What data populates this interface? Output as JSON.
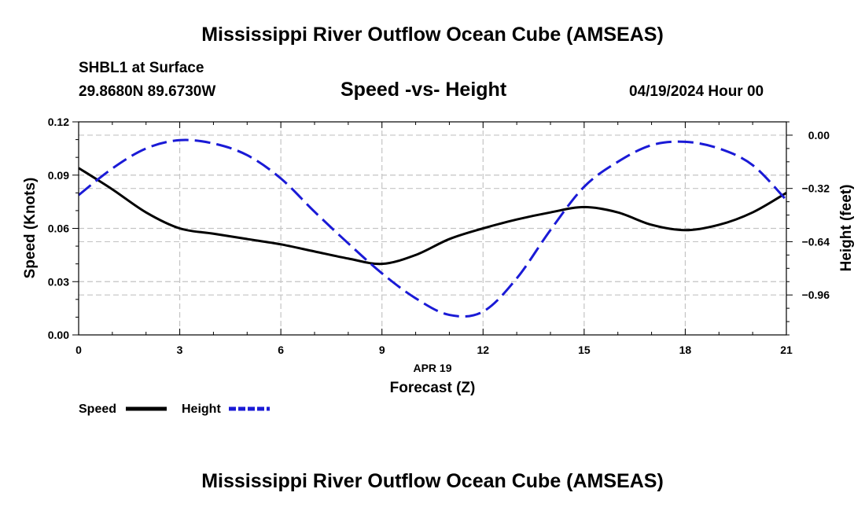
{
  "header": {
    "title": "Mississippi River Outflow Ocean Cube (AMSEAS)",
    "station": "SHBL1 at Surface",
    "coordinates": "29.8680N  89.6730W",
    "subtitle": "Speed -vs- Height",
    "datetime": "04/19/2024 Hour 00"
  },
  "footer": {
    "title": "Mississippi River Outflow Ocean Cube (AMSEAS)"
  },
  "chart_data": {
    "type": "line",
    "title": "Speed -vs- Height",
    "xlabel": "Forecast (Z)",
    "xlabel_date": "APR 19",
    "ylabel": "Speed (Knots)",
    "y2label": "Height (feet)",
    "xlim": [
      0,
      21
    ],
    "ylim": [
      0,
      0.12
    ],
    "y2lim": [
      -1.2,
      0.08
    ],
    "x_ticks": [
      0,
      3,
      6,
      9,
      12,
      15,
      18,
      21
    ],
    "x_tick_labels": [
      "0",
      "3",
      "6",
      "9",
      "12",
      "15",
      "18",
      "21"
    ],
    "y_ticks": [
      0,
      0.03,
      0.06,
      0.09,
      0.12
    ],
    "y_tick_labels": [
      "0.00",
      "0.03",
      "0.06",
      "0.09",
      "0.12"
    ],
    "y2_ticks": [
      0,
      -0.32,
      -0.64,
      -0.96
    ],
    "y2_tick_labels": [
      "0.00",
      "−0.32",
      "−0.64",
      "−0.96"
    ],
    "grid": true,
    "x": [
      0,
      1,
      2,
      3,
      4,
      5,
      6,
      7,
      8,
      9,
      10,
      11,
      12,
      13,
      14,
      15,
      16,
      17,
      18,
      19,
      20,
      21
    ],
    "series": [
      {
        "name": "Speed",
        "axis": "left",
        "color": "#000000",
        "dash": "solid",
        "values": [
          0.094,
          0.082,
          0.069,
          0.06,
          0.057,
          0.054,
          0.051,
          0.047,
          0.043,
          0.04,
          0.045,
          0.054,
          0.06,
          0.065,
          0.069,
          0.072,
          0.069,
          0.062,
          0.059,
          0.062,
          0.069,
          0.08
        ]
      },
      {
        "name": "Height",
        "axis": "right",
        "color": "#1a1ad6",
        "dash": "dashed",
        "values": [
          -0.36,
          -0.2,
          -0.08,
          -0.03,
          -0.05,
          -0.12,
          -0.26,
          -0.46,
          -0.65,
          -0.83,
          -0.98,
          -1.08,
          -1.06,
          -0.86,
          -0.57,
          -0.31,
          -0.16,
          -0.06,
          -0.04,
          -0.08,
          -0.18,
          -0.39
        ]
      }
    ],
    "legend": [
      {
        "label": "Speed",
        "color": "#000000",
        "dash": "solid"
      },
      {
        "label": "Height",
        "color": "#1a1ad6",
        "dash": "dashed"
      }
    ],
    "legend_position": "bottom-left"
  }
}
